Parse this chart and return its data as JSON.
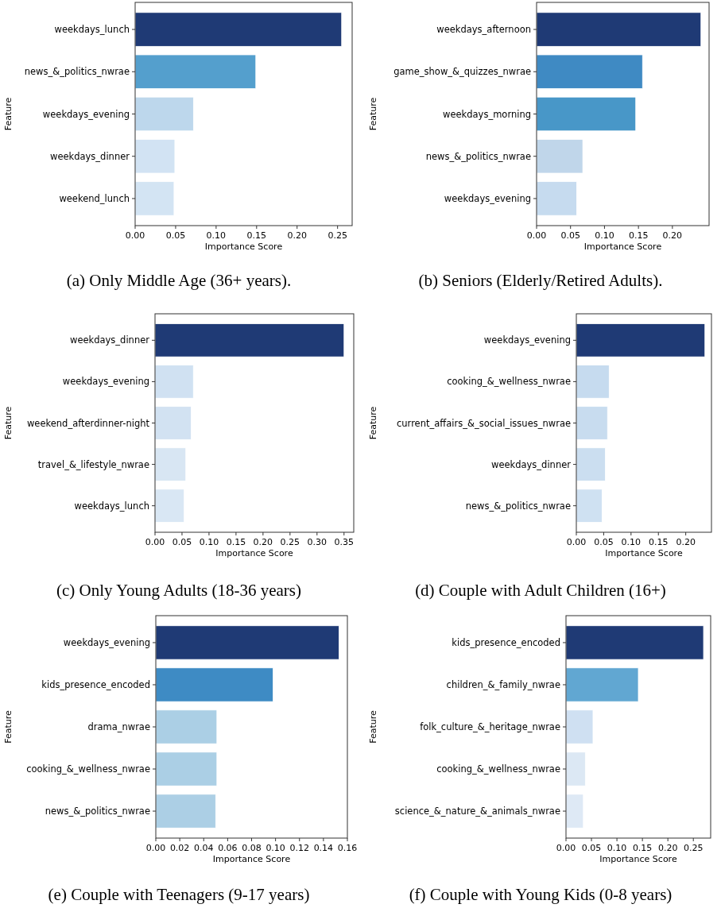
{
  "chart_data": [
    {
      "type": "bar",
      "orientation": "horizontal",
      "title": "(a) Only Middle Age (36+ years).",
      "xlabel": "Importance Score",
      "ylabel": "Feature",
      "categories": [
        "weekdays_lunch",
        "news_&_politics_nwrae",
        "weekdays_evening",
        "weekdays_dinner",
        "weekend_lunch"
      ],
      "values": [
        0.255,
        0.149,
        0.072,
        0.049,
        0.048
      ],
      "colors": [
        "#1f3a75",
        "#549fcd",
        "#bdd7ec",
        "#d2e3f3",
        "#d3e4f3"
      ],
      "xlim": [
        0,
        0.268
      ],
      "xticks": [
        {
          "value": 0,
          "label": "0.00"
        },
        {
          "value": 0.05,
          "label": "0.05"
        },
        {
          "value": 0.1,
          "label": "0.10"
        },
        {
          "value": 0.15,
          "label": "0.15"
        },
        {
          "value": 0.2,
          "label": "0.20"
        },
        {
          "value": 0.25,
          "label": "0.25"
        }
      ]
    },
    {
      "type": "bar",
      "orientation": "horizontal",
      "title": "(b) Seniors (Elderly/Retired Adults).",
      "xlabel": "Importance Score",
      "ylabel": "Feature",
      "categories": [
        "weekdays_afternoon",
        "game_show_&_quizzes_nwrae",
        "weekdays_morning",
        "news_&_politics_nwrae",
        "weekdays_evening"
      ],
      "values": [
        0.242,
        0.156,
        0.146,
        0.068,
        0.059
      ],
      "colors": [
        "#1f3a75",
        "#3f8ac3",
        "#4897c8",
        "#c0d6ea",
        "#c6dbef"
      ],
      "xlim": [
        0,
        0.254
      ],
      "xticks": [
        {
          "value": 0,
          "label": "0.00"
        },
        {
          "value": 0.05,
          "label": "0.05"
        },
        {
          "value": 0.1,
          "label": "0.10"
        },
        {
          "value": 0.15,
          "label": "0.15"
        },
        {
          "value": 0.2,
          "label": "0.20"
        }
      ]
    },
    {
      "type": "bar",
      "orientation": "horizontal",
      "title": "(c) Only Young Adults (18-36 years)",
      "xlabel": "Importance Score",
      "ylabel": "Feature",
      "categories": [
        "weekdays_dinner",
        "weekdays_evening",
        "weekend_afterdinner-night",
        "travel_&_lifestyle_nwrae",
        "weekdays_lunch"
      ],
      "values": [
        0.35,
        0.071,
        0.067,
        0.057,
        0.054
      ],
      "colors": [
        "#1f3a75",
        "#d0e1f2",
        "#d2e2f2",
        "#d8e6f3",
        "#d9e7f4"
      ],
      "xlim": [
        0,
        0.368
      ],
      "xticks": [
        {
          "value": 0,
          "label": "0.00"
        },
        {
          "value": 0.05,
          "label": "0.05"
        },
        {
          "value": 0.1,
          "label": "0.10"
        },
        {
          "value": 0.15,
          "label": "0.15"
        },
        {
          "value": 0.2,
          "label": "0.20"
        },
        {
          "value": 0.25,
          "label": "0.25"
        },
        {
          "value": 0.3,
          "label": "0.30"
        },
        {
          "value": 0.35,
          "label": "0.35"
        }
      ]
    },
    {
      "type": "bar",
      "orientation": "horizontal",
      "title": "(d) Couple with Adult Children (16+)",
      "xlabel": "Importance Score",
      "ylabel": "Feature",
      "categories": [
        "weekdays_evening",
        "cooking_&_wellness_nwrae",
        "current_affairs_&_social_issues_nwrae",
        "weekdays_dinner",
        "news_&_politics_nwrae"
      ],
      "values": [
        0.235,
        0.06,
        0.057,
        0.053,
        0.047
      ],
      "colors": [
        "#1f3a75",
        "#c6dbef",
        "#c8dcef",
        "#cbdef0",
        "#cfe1f2"
      ],
      "xlim": [
        0,
        0.247
      ],
      "xticks": [
        {
          "value": 0,
          "label": "0.00"
        },
        {
          "value": 0.05,
          "label": "0.05"
        },
        {
          "value": 0.1,
          "label": "0.10"
        },
        {
          "value": 0.15,
          "label": "0.15"
        },
        {
          "value": 0.2,
          "label": "0.20"
        }
      ]
    },
    {
      "type": "bar",
      "orientation": "horizontal",
      "title": "(e) Couple with Teenagers (9-17 years)",
      "xlabel": "Importance Score",
      "ylabel": "Feature",
      "categories": [
        "weekdays_evening",
        "kids_presence_encoded",
        "drama_nwrae",
        "cooking_&_wellness_nwrae",
        "news_&_politics_nwrae"
      ],
      "values": [
        0.153,
        0.098,
        0.051,
        0.051,
        0.05
      ],
      "colors": [
        "#1f3a75",
        "#3e8bc4",
        "#abcfe5",
        "#abcfe5",
        "#accfe5"
      ],
      "xlim": [
        0,
        0.16
      ],
      "xticks": [
        {
          "value": 0,
          "label": "0.00"
        },
        {
          "value": 0.02,
          "label": "0.02"
        },
        {
          "value": 0.04,
          "label": "0.04"
        },
        {
          "value": 0.06,
          "label": "0.06"
        },
        {
          "value": 0.08,
          "label": "0.08"
        },
        {
          "value": 0.1,
          "label": "0.10"
        },
        {
          "value": 0.12,
          "label": "0.12"
        },
        {
          "value": 0.14,
          "label": "0.14"
        },
        {
          "value": 0.16,
          "label": "0.16"
        }
      ]
    },
    {
      "type": "bar",
      "orientation": "horizontal",
      "title": "(f) Couple with Young Kids (0-8 years)",
      "xlabel": "Importance Score",
      "ylabel": "Feature",
      "categories": [
        "kids_presence_encoded",
        "children_&_family_nwrae",
        "folk_culture_&_heritage_nwrae",
        "cooking_&_wellness_nwrae",
        "science_&_nature_&_animals_nwrae"
      ],
      "values": [
        0.27,
        0.142,
        0.053,
        0.038,
        0.034
      ],
      "colors": [
        "#1f3a75",
        "#61a7d2",
        "#cfe0f2",
        "#dce8f4",
        "#dee9f5"
      ],
      "xlim": [
        0,
        0.284
      ],
      "xticks": [
        {
          "value": 0,
          "label": "0.00"
        },
        {
          "value": 0.05,
          "label": "0.05"
        },
        {
          "value": 0.1,
          "label": "0.10"
        },
        {
          "value": 0.15,
          "label": "0.15"
        },
        {
          "value": 0.2,
          "label": "0.20"
        },
        {
          "value": 0.25,
          "label": "0.25"
        }
      ]
    }
  ]
}
